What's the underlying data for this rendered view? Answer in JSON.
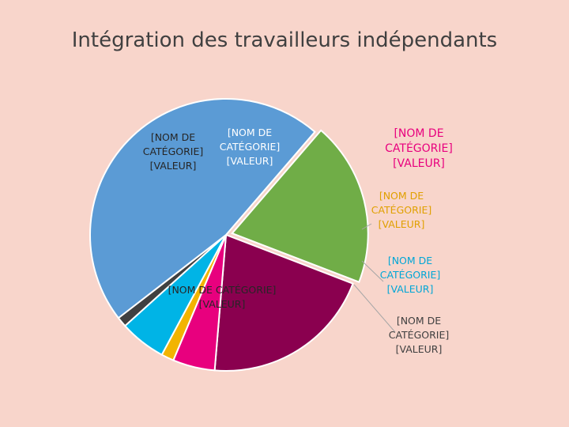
{
  "chart_data": {
    "type": "pie",
    "title": "Intégration des travailleurs indépendants",
    "slices": [
      {
        "name": "[NOM DE CATÉGORIE]",
        "value": 20.5,
        "value_label": "[VALEUR]",
        "color": "#8a004f",
        "label_color": "#ffffff",
        "label_position": "inside",
        "label_lines": [
          "[NOM DE",
          "CATÉGORIE]",
          "[VALEUR]"
        ]
      },
      {
        "name": "[NOM DE CATÉGORIE]",
        "value": 5.0,
        "value_label": "[VALEUR]",
        "color": "#e8007e",
        "label_color": "#e8007e",
        "label_position": "outside",
        "label_lines": [
          "[NOM DE",
          "CATÉGORIE]",
          "[VALEUR]"
        ]
      },
      {
        "name": "[NOM DE CATÉGORIE]",
        "value": 1.5,
        "value_label": "[VALEUR]",
        "color": "#f2b400",
        "label_color": "#e0a000",
        "label_position": "outside",
        "label_lines": [
          "[NOM DE",
          "CATÉGORIE]",
          "[VALEUR]"
        ]
      },
      {
        "name": "[NOM DE CATÉGORIE]",
        "value": 5.5,
        "value_label": "[VALEUR]",
        "color": "#00b4e6",
        "label_color": "#00a6d6",
        "label_position": "outside",
        "label_lines": [
          "[NOM DE",
          "CATÉGORIE]",
          "[VALEUR]"
        ]
      },
      {
        "name": "[NOM DE CATÉGORIE]",
        "value": 1.2,
        "value_label": "[VALEUR]",
        "color": "#404040",
        "label_color": "#404040",
        "label_position": "outside",
        "label_lines": [
          "[NOM DE",
          "CATÉGORIE]",
          "[VALEUR]"
        ]
      },
      {
        "name": "[NOM DE CATÉGORIE]",
        "value": 46.8,
        "value_label": "[VALEUR]",
        "color": "#5b9bd5",
        "label_color": "#262626",
        "label_position": "inside",
        "label_lines": [
          "[NOM DE CATÉGORIE]",
          "[VALEUR]"
        ]
      },
      {
        "name": "[NOM DE CATÉGORIE]",
        "value": 19.5,
        "value_label": "[VALEUR]",
        "color": "#70ad47",
        "label_color": "#262626",
        "label_position": "inside",
        "label_lines": [
          "[NOM DE",
          "CATÉGORIE]",
          "[VALEUR]"
        ]
      }
    ],
    "start_angle_deg": 21,
    "direction": "clockwise",
    "legend": "none",
    "data_labels": "category-and-value"
  }
}
